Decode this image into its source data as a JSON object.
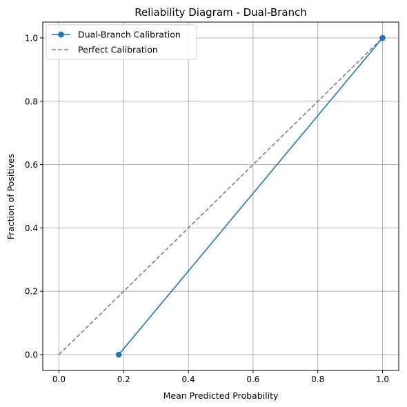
{
  "chart_data": {
    "type": "line",
    "title": "Reliability Diagram - Dual-Branch",
    "xlabel": "Mean Predicted Probability",
    "ylabel": "Fraction of Positives",
    "xlim": [
      -0.05,
      1.05
    ],
    "ylim": [
      -0.05,
      1.05
    ],
    "xticks": [
      0.0,
      0.2,
      0.4,
      0.6,
      0.8,
      1.0
    ],
    "yticks": [
      0.0,
      0.2,
      0.4,
      0.6,
      0.8,
      1.0
    ],
    "xtick_labels": [
      "0.0",
      "0.2",
      "0.4",
      "0.6",
      "0.8",
      "1.0"
    ],
    "ytick_labels": [
      "0.0",
      "0.2",
      "0.4",
      "0.6",
      "0.8",
      "1.0"
    ],
    "grid": true,
    "legend_position": "top-left",
    "series": [
      {
        "name": "Dual-Branch Calibration",
        "style": "solid-with-markers",
        "color": "#1f77b4",
        "x": [
          0.185,
          1.0
        ],
        "y": [
          0.0,
          1.0
        ]
      },
      {
        "name": "Perfect Calibration",
        "style": "dashed",
        "color": "#808080",
        "x": [
          0.0,
          1.0
        ],
        "y": [
          0.0,
          1.0
        ]
      }
    ]
  }
}
